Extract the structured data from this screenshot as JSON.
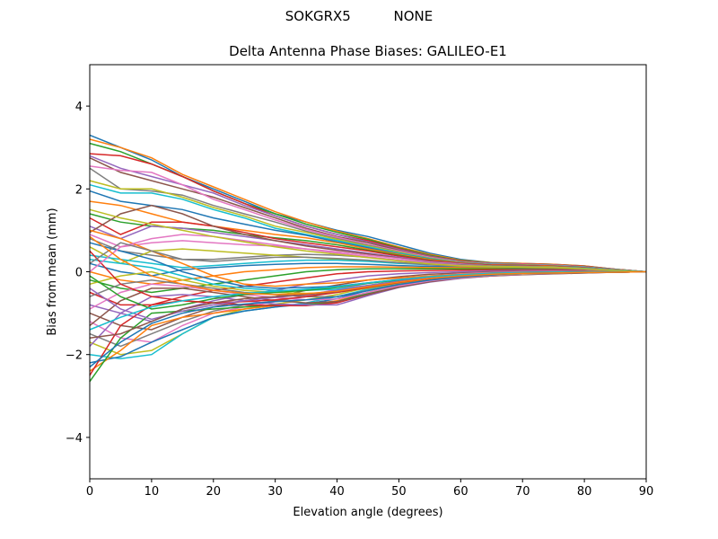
{
  "figure": {
    "suptitle": "SOKGRX5          NONE"
  },
  "chart_data": {
    "type": "line",
    "title": "Delta Antenna Phase Biases: GALILEO-E1",
    "xlabel": "Elevation angle (degrees)",
    "ylabel": "Bias from mean (mm)",
    "xlim": [
      0,
      90
    ],
    "ylim": [
      -5,
      5
    ],
    "xticks": [
      0,
      10,
      20,
      30,
      40,
      50,
      60,
      70,
      80,
      90
    ],
    "yticks": [
      -4,
      -2,
      0,
      2,
      4
    ],
    "xtick_labels": [
      "0",
      "10",
      "20",
      "30",
      "40",
      "50",
      "60",
      "70",
      "80",
      "90"
    ],
    "ytick_labels": [
      "−4",
      "−2",
      "0",
      "2",
      "4"
    ],
    "grid": false,
    "legend": "none",
    "colors": [
      "#1f77b4",
      "#ff7f0e",
      "#2ca02c",
      "#d62728",
      "#9467bd",
      "#8c564b",
      "#e377c2",
      "#7f7f7f",
      "#bcbd22",
      "#17becf"
    ],
    "x": [
      0,
      5,
      10,
      15,
      20,
      25,
      30,
      35,
      40,
      45,
      50,
      55,
      60,
      65,
      70,
      75,
      80,
      85,
      90
    ],
    "series": [
      {
        "values": [
          3.3,
          3.0,
          2.7,
          2.3,
          2.0,
          1.7,
          1.4,
          1.2,
          1.0,
          0.85,
          0.65,
          0.45,
          0.3,
          0.22,
          0.2,
          0.18,
          0.14,
          0.06,
          0.0
        ]
      },
      {
        "values": [
          3.2,
          3.0,
          2.75,
          2.35,
          2.05,
          1.75,
          1.45,
          1.2,
          0.98,
          0.8,
          0.6,
          0.42,
          0.28,
          0.22,
          0.2,
          0.18,
          0.14,
          0.06,
          0.0
        ]
      },
      {
        "values": [
          3.1,
          2.9,
          2.6,
          2.3,
          1.95,
          1.65,
          1.4,
          1.15,
          0.95,
          0.78,
          0.58,
          0.4,
          0.27,
          0.21,
          0.19,
          0.17,
          0.13,
          0.06,
          0.0
        ]
      },
      {
        "values": [
          2.85,
          2.8,
          2.6,
          2.3,
          1.95,
          1.65,
          1.35,
          1.1,
          0.9,
          0.75,
          0.56,
          0.38,
          0.26,
          0.2,
          0.19,
          0.17,
          0.13,
          0.06,
          0.0
        ]
      },
      {
        "values": [
          2.8,
          2.5,
          2.3,
          2.1,
          1.9,
          1.6,
          1.35,
          1.1,
          0.9,
          0.72,
          0.54,
          0.37,
          0.25,
          0.2,
          0.18,
          0.16,
          0.12,
          0.05,
          0.0
        ]
      },
      {
        "values": [
          2.75,
          2.4,
          2.2,
          2.0,
          1.8,
          1.55,
          1.3,
          1.05,
          0.85,
          0.7,
          0.52,
          0.36,
          0.25,
          0.19,
          0.18,
          0.16,
          0.12,
          0.05,
          0.0
        ]
      },
      {
        "values": [
          2.55,
          2.45,
          2.4,
          2.1,
          1.75,
          1.5,
          1.25,
          1.02,
          0.83,
          0.66,
          0.5,
          0.35,
          0.24,
          0.19,
          0.18,
          0.16,
          0.12,
          0.05,
          0.0
        ]
      },
      {
        "values": [
          2.5,
          2.0,
          1.95,
          1.85,
          1.6,
          1.4,
          1.2,
          0.98,
          0.8,
          0.64,
          0.48,
          0.33,
          0.23,
          0.18,
          0.17,
          0.15,
          0.11,
          0.05,
          0.0
        ]
      },
      {
        "values": [
          2.2,
          2.0,
          2.0,
          1.8,
          1.55,
          1.35,
          1.1,
          0.95,
          0.78,
          0.62,
          0.47,
          0.33,
          0.23,
          0.18,
          0.17,
          0.15,
          0.11,
          0.05,
          0.0
        ]
      },
      {
        "values": [
          2.1,
          1.9,
          1.9,
          1.75,
          1.5,
          1.3,
          1.05,
          0.9,
          0.75,
          0.6,
          0.45,
          0.32,
          0.22,
          0.18,
          0.17,
          0.15,
          0.11,
          0.05,
          0.0
        ]
      },
      {
        "values": [
          1.95,
          1.7,
          1.6,
          1.5,
          1.3,
          1.15,
          1.0,
          0.88,
          0.72,
          0.58,
          0.43,
          0.31,
          0.22,
          0.17,
          0.16,
          0.14,
          0.1,
          0.04,
          0.0
        ]
      },
      {
        "values": [
          1.7,
          1.6,
          1.4,
          1.2,
          1.1,
          1.0,
          0.9,
          0.82,
          0.7,
          0.55,
          0.42,
          0.3,
          0.21,
          0.17,
          0.16,
          0.14,
          0.1,
          0.04,
          0.0
        ]
      },
      {
        "values": [
          1.4,
          1.2,
          1.1,
          1.05,
          1.0,
          0.9,
          0.82,
          0.75,
          0.65,
          0.52,
          0.4,
          0.28,
          0.2,
          0.16,
          0.15,
          0.13,
          0.1,
          0.04,
          0.0
        ]
      },
      {
        "values": [
          1.3,
          0.9,
          1.2,
          1.2,
          1.1,
          0.95,
          0.8,
          0.7,
          0.6,
          0.5,
          0.38,
          0.27,
          0.2,
          0.16,
          0.15,
          0.13,
          0.1,
          0.04,
          0.0
        ]
      },
      {
        "values": [
          1.1,
          0.8,
          1.1,
          1.05,
          0.95,
          0.85,
          0.75,
          0.65,
          0.55,
          0.45,
          0.35,
          0.25,
          0.19,
          0.15,
          0.14,
          0.12,
          0.09,
          0.04,
          0.0
        ]
      },
      {
        "values": [
          0.95,
          1.4,
          1.6,
          1.4,
          1.1,
          0.9,
          0.75,
          0.62,
          0.52,
          0.43,
          0.33,
          0.24,
          0.18,
          0.15,
          0.14,
          0.12,
          0.09,
          0.04,
          0.0
        ]
      },
      {
        "values": [
          0.9,
          0.6,
          0.7,
          0.75,
          0.7,
          0.65,
          0.62,
          0.55,
          0.48,
          0.4,
          0.32,
          0.23,
          0.18,
          0.14,
          0.13,
          0.12,
          0.09,
          0.04,
          0.0
        ]
      },
      {
        "values": [
          0.8,
          0.5,
          0.4,
          0.3,
          0.3,
          0.35,
          0.4,
          0.42,
          0.4,
          0.35,
          0.28,
          0.21,
          0.17,
          0.14,
          0.13,
          0.12,
          0.09,
          0.04,
          0.0
        ]
      },
      {
        "values": [
          0.6,
          0.2,
          0.5,
          0.55,
          0.5,
          0.45,
          0.4,
          0.35,
          0.3,
          0.27,
          0.22,
          0.18,
          0.15,
          0.13,
          0.12,
          0.11,
          0.08,
          0.03,
          0.0
        ]
      },
      {
        "values": [
          0.4,
          0.3,
          0.2,
          0.1,
          0.15,
          0.2,
          0.25,
          0.28,
          0.28,
          0.25,
          0.2,
          0.17,
          0.14,
          0.12,
          0.11,
          0.1,
          0.08,
          0.03,
          0.0
        ]
      },
      {
        "values": [
          0.2,
          0.0,
          -0.1,
          0.05,
          0.1,
          0.15,
          0.18,
          0.2,
          0.2,
          0.18,
          0.15,
          0.13,
          0.12,
          0.11,
          0.1,
          0.09,
          0.07,
          0.03,
          0.0
        ]
      },
      {
        "values": [
          0.0,
          -0.2,
          -0.3,
          -0.2,
          -0.1,
          0.0,
          0.05,
          0.1,
          0.12,
          0.12,
          0.11,
          0.1,
          0.1,
          0.09,
          0.09,
          0.08,
          0.06,
          0.03,
          0.0
        ]
      },
      {
        "values": [
          -0.2,
          -0.4,
          -0.5,
          -0.4,
          -0.3,
          -0.2,
          -0.1,
          0.0,
          0.05,
          0.07,
          0.07,
          0.07,
          0.07,
          0.07,
          0.07,
          0.06,
          0.05,
          0.02,
          0.0
        ]
      },
      {
        "values": [
          -0.5,
          -0.8,
          -0.8,
          -0.6,
          -0.45,
          -0.35,
          -0.25,
          -0.15,
          -0.05,
          0.0,
          0.02,
          0.03,
          0.04,
          0.05,
          0.05,
          0.05,
          0.04,
          0.02,
          0.0
        ]
      },
      {
        "values": [
          -0.8,
          -1.0,
          -1.2,
          -0.9,
          -0.7,
          -0.55,
          -0.45,
          -0.3,
          -0.2,
          -0.1,
          -0.05,
          -0.02,
          0.0,
          0.02,
          0.03,
          0.03,
          0.03,
          0.01,
          0.0
        ]
      },
      {
        "values": [
          -1.0,
          -1.3,
          -1.4,
          -1.1,
          -0.85,
          -0.7,
          -0.6,
          -0.45,
          -0.32,
          -0.2,
          -0.12,
          -0.06,
          -0.03,
          0.0,
          0.01,
          0.02,
          0.02,
          0.01,
          0.0
        ]
      },
      {
        "values": [
          -1.2,
          -1.6,
          -1.7,
          -1.3,
          -1.0,
          -0.85,
          -0.72,
          -0.58,
          -0.42,
          -0.28,
          -0.18,
          -0.1,
          -0.05,
          -0.02,
          0.0,
          0.01,
          0.01,
          0.01,
          0.0
        ]
      },
      {
        "values": [
          -1.5,
          -1.8,
          -1.5,
          -1.2,
          -0.95,
          -0.8,
          -0.7,
          -0.6,
          -0.48,
          -0.33,
          -0.22,
          -0.13,
          -0.07,
          -0.03,
          -0.01,
          0.0,
          0.01,
          0.0,
          0.0
        ]
      },
      {
        "values": [
          -1.7,
          -2.0,
          -1.9,
          -1.5,
          -1.1,
          -0.9,
          -0.78,
          -0.68,
          -0.55,
          -0.38,
          -0.26,
          -0.16,
          -0.09,
          -0.05,
          -0.02,
          -0.01,
          0.0,
          0.0,
          0.0
        ]
      },
      {
        "values": [
          -2.0,
          -2.1,
          -2.0,
          -1.5,
          -1.1,
          -0.95,
          -0.85,
          -0.75,
          -0.6,
          -0.42,
          -0.28,
          -0.18,
          -0.1,
          -0.06,
          -0.03,
          -0.02,
          -0.01,
          0.0,
          0.0
        ]
      },
      {
        "values": [
          -2.2,
          -2.05,
          -1.7,
          -1.4,
          -1.1,
          -0.95,
          -0.85,
          -0.78,
          -0.65,
          -0.45,
          -0.3,
          -0.2,
          -0.12,
          -0.07,
          -0.04,
          -0.03,
          -0.01,
          0.0,
          0.0
        ]
      },
      {
        "values": [
          -2.4,
          -1.9,
          -1.3,
          -1.1,
          -1.0,
          -0.9,
          -0.82,
          -0.8,
          -0.7,
          -0.5,
          -0.33,
          -0.22,
          -0.13,
          -0.08,
          -0.05,
          -0.03,
          -0.02,
          -0.01,
          0.0
        ]
      },
      {
        "values": [
          -2.65,
          -1.6,
          -1.0,
          -0.95,
          -0.9,
          -0.85,
          -0.8,
          -0.8,
          -0.72,
          -0.52,
          -0.35,
          -0.23,
          -0.14,
          -0.09,
          -0.06,
          -0.04,
          -0.02,
          -0.01,
          0.0
        ]
      },
      {
        "values": [
          -2.5,
          -1.3,
          -0.8,
          -0.7,
          -0.75,
          -0.8,
          -0.82,
          -0.82,
          -0.75,
          -0.55,
          -0.37,
          -0.24,
          -0.15,
          -0.1,
          -0.06,
          -0.04,
          -0.02,
          -0.01,
          0.0
        ]
      },
      {
        "values": [
          -1.8,
          -1.0,
          -0.6,
          -0.55,
          -0.6,
          -0.7,
          -0.78,
          -0.8,
          -0.8,
          -0.58,
          -0.38,
          -0.25,
          -0.16,
          -0.1,
          -0.07,
          -0.05,
          -0.03,
          -0.01,
          0.0
        ]
      },
      {
        "values": [
          -1.3,
          -0.7,
          -0.4,
          -0.4,
          -0.5,
          -0.6,
          -0.7,
          -0.75,
          -0.72,
          -0.55,
          -0.37,
          -0.24,
          -0.15,
          -0.1,
          -0.07,
          -0.05,
          -0.03,
          -0.01,
          0.0
        ]
      },
      {
        "values": [
          -0.9,
          -0.5,
          -0.3,
          -0.35,
          -0.45,
          -0.55,
          -0.62,
          -0.68,
          -0.66,
          -0.5,
          -0.34,
          -0.22,
          -0.14,
          -0.09,
          -0.06,
          -0.04,
          -0.02,
          -0.01,
          0.0
        ]
      },
      {
        "values": [
          -0.6,
          -0.3,
          -0.2,
          -0.3,
          -0.4,
          -0.5,
          -0.55,
          -0.6,
          -0.6,
          -0.45,
          -0.3,
          -0.2,
          -0.13,
          -0.08,
          -0.05,
          -0.04,
          -0.02,
          -0.01,
          0.0
        ]
      },
      {
        "values": [
          -0.3,
          -0.1,
          0.0,
          -0.2,
          -0.35,
          -0.45,
          -0.5,
          -0.52,
          -0.5,
          -0.4,
          -0.27,
          -0.18,
          -0.11,
          -0.07,
          -0.05,
          -0.03,
          -0.02,
          -0.01,
          0.0
        ]
      },
      {
        "values": [
          0.3,
          0.2,
          0.1,
          -0.1,
          -0.3,
          -0.4,
          -0.45,
          -0.45,
          -0.42,
          -0.33,
          -0.23,
          -0.15,
          -0.1,
          -0.06,
          -0.04,
          -0.03,
          -0.02,
          -0.01,
          0.0
        ]
      },
      {
        "values": [
          0.7,
          0.5,
          0.3,
          0.0,
          -0.2,
          -0.35,
          -0.4,
          -0.38,
          -0.35,
          -0.27,
          -0.19,
          -0.13,
          -0.08,
          -0.05,
          -0.03,
          -0.02,
          -0.01,
          0.0,
          0.0
        ]
      },
      {
        "values": [
          1.0,
          0.8,
          0.5,
          0.2,
          -0.1,
          -0.3,
          -0.35,
          -0.3,
          -0.27,
          -0.2,
          -0.15,
          -0.1,
          -0.06,
          -0.04,
          -0.02,
          -0.02,
          -0.01,
          0.0,
          0.0
        ]
      },
      {
        "values": [
          -0.1,
          -0.6,
          -0.9,
          -0.8,
          -0.65,
          -0.55,
          -0.5,
          -0.45,
          -0.38,
          -0.28,
          -0.2,
          -0.13,
          -0.08,
          -0.05,
          -0.03,
          -0.02,
          -0.01,
          0.0,
          0.0
        ]
      },
      {
        "values": [
          0.5,
          -0.3,
          -0.6,
          -0.7,
          -0.75,
          -0.72,
          -0.68,
          -0.6,
          -0.5,
          -0.38,
          -0.26,
          -0.17,
          -0.1,
          -0.06,
          -0.04,
          -0.03,
          -0.02,
          -0.01,
          0.0
        ]
      },
      {
        "values": [
          -0.4,
          -0.9,
          -1.15,
          -0.95,
          -0.8,
          -0.7,
          -0.62,
          -0.55,
          -0.45,
          -0.33,
          -0.23,
          -0.15,
          -0.09,
          -0.05,
          -0.03,
          -0.02,
          -0.01,
          0.0,
          0.0
        ]
      },
      {
        "values": [
          -1.6,
          -1.5,
          -1.2,
          -0.9,
          -0.75,
          -0.65,
          -0.6,
          -0.55,
          -0.48,
          -0.36,
          -0.25,
          -0.16,
          -0.1,
          -0.06,
          -0.04,
          -0.03,
          -0.02,
          -0.01,
          0.0
        ]
      },
      {
        "values": [
          0.0,
          0.6,
          0.8,
          0.9,
          0.85,
          0.75,
          0.65,
          0.55,
          0.45,
          0.36,
          0.28,
          0.2,
          0.15,
          0.12,
          0.11,
          0.1,
          0.07,
          0.03,
          0.0
        ]
      },
      {
        "values": [
          0.2,
          0.7,
          0.5,
          0.3,
          0.25,
          0.3,
          0.35,
          0.35,
          0.32,
          0.28,
          0.22,
          0.17,
          0.13,
          0.11,
          0.1,
          0.09,
          0.07,
          0.03,
          0.0
        ]
      },
      {
        "values": [
          1.5,
          1.3,
          1.15,
          1.0,
          0.85,
          0.72,
          0.6,
          0.5,
          0.42,
          0.34,
          0.26,
          0.19,
          0.14,
          0.12,
          0.11,
          0.1,
          0.07,
          0.03,
          0.0
        ]
      },
      {
        "values": [
          -1.4,
          -1.1,
          -0.85,
          -0.7,
          -0.6,
          -0.52,
          -0.47,
          -0.42,
          -0.36,
          -0.27,
          -0.19,
          -0.12,
          -0.07,
          -0.04,
          -0.02,
          -0.01,
          -0.01,
          0.0,
          0.0
        ]
      },
      {
        "values": [
          -2.3,
          -1.7,
          -1.25,
          -1.0,
          -0.85,
          -0.78,
          -0.72,
          -0.68,
          -0.6,
          -0.46,
          -0.31,
          -0.2,
          -0.12,
          -0.07,
          -0.04,
          -0.03,
          -0.02,
          -0.01,
          0.0
        ]
      },
      {
        "values": [
          0.85,
          0.3,
          -0.1,
          -0.3,
          -0.45,
          -0.52,
          -0.55,
          -0.53,
          -0.47,
          -0.36,
          -0.25,
          -0.16,
          -0.1,
          -0.06,
          -0.04,
          -0.03,
          -0.02,
          -0.01,
          0.0
        ]
      }
    ]
  }
}
